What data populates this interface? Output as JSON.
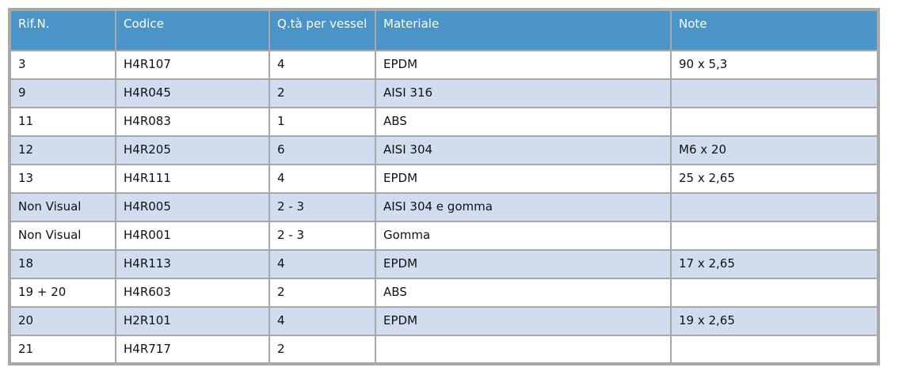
{
  "table": {
    "column_keys": [
      "rif-n",
      "codice",
      "qta-per-vessel",
      "materiale",
      "note"
    ],
    "columns": [
      "Rif.N.",
      "Codice",
      "Q.tà per vessel",
      "Materiale",
      "Note"
    ],
    "rows": [
      [
        "3",
        "H4R107",
        "4",
        "EPDM",
        "90 x 5,3"
      ],
      [
        "9",
        "H4R045",
        "2",
        "AISI 316",
        ""
      ],
      [
        "11",
        "H4R083",
        "1",
        "ABS",
        ""
      ],
      [
        "12",
        "H4R205",
        "6",
        "AISI 304",
        "M6 x 20"
      ],
      [
        "13",
        "H4R111",
        "4",
        "EPDM",
        "25 x 2,65"
      ],
      [
        "Non Visual",
        "H4R005",
        "2 - 3",
        "AISI 304 e gomma",
        ""
      ],
      [
        "Non Visual",
        "H4R001",
        "2 - 3",
        "Gomma",
        ""
      ],
      [
        "18",
        "H4R113",
        "4",
        "EPDM",
        "17 x 2,65"
      ],
      [
        "19 + 20",
        "H4R603",
        "2",
        "ABS",
        ""
      ],
      [
        "20",
        "H2R101",
        "4",
        "EPDM",
        "19 x 2,65"
      ],
      [
        "21",
        "H4R717",
        "2",
        "",
        ""
      ]
    ]
  },
  "colors": {
    "header_bg": "#4b94c8",
    "header_text": "#ffffff",
    "row_bg": "#ffffff",
    "row_alt_bg": "#d0ddee",
    "border": "#a8a8a8",
    "text": "#111111"
  }
}
